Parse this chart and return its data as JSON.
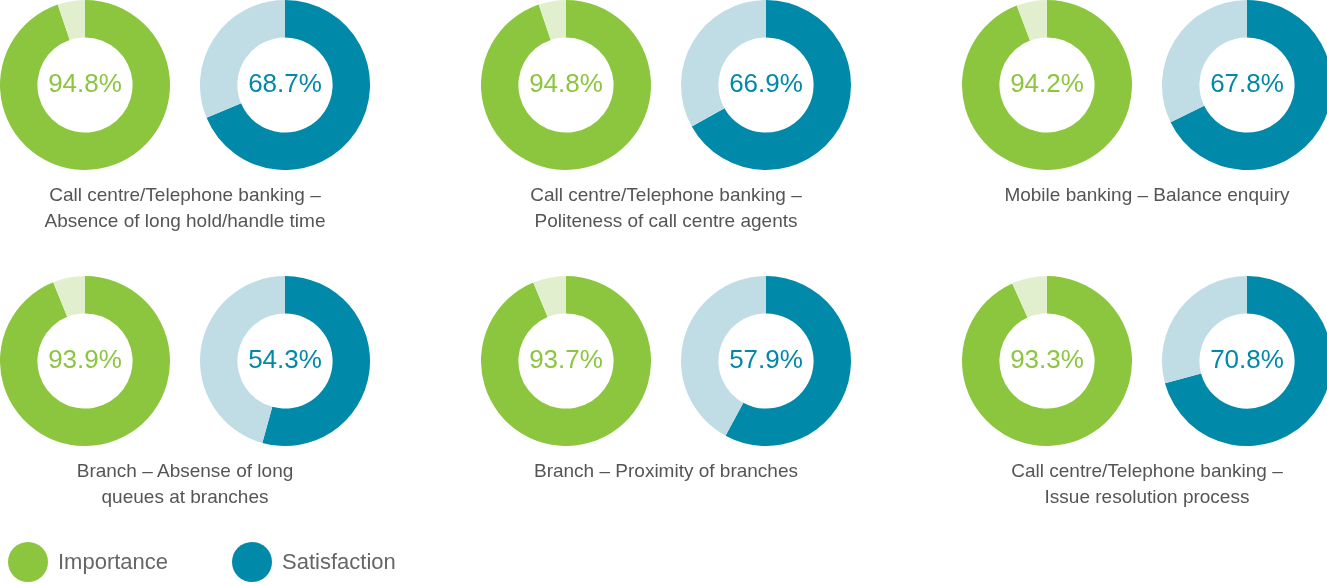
{
  "chart_data": [
    {
      "type": "donut",
      "title": "Call centre/Telephone banking –\nAbsence of long hold/handle time",
      "categories": [
        null,
        null
      ],
      "legend": "bottom",
      "series": [
        {
          "name": "Importance",
          "colors": [
            "#8cc63f",
            "#e2efcf"
          ],
          "values": [
            94.8,
            5.2
          ],
          "value_labels": [
            "94.8%",
            null
          ]
        },
        {
          "name": "Satisfaction",
          "colors": [
            "#0089a8",
            "#c0dde5"
          ],
          "values": [
            68.7,
            31.3
          ],
          "value_labels": [
            "68.7%",
            null
          ]
        }
      ]
    },
    {
      "type": "donut",
      "title": "Call centre/Telephone banking –\nPoliteness of call centre agents",
      "categories": [
        null,
        null
      ],
      "series": [
        {
          "colors": [
            "#8cc63f",
            "#e2efcf"
          ],
          "values": [
            94.8,
            5.2
          ],
          "value_labels": [
            "94.8%",
            null
          ]
        },
        {
          "colors": [
            "#0089a8",
            "#c0dde5"
          ],
          "values": [
            66.9,
            33.1
          ],
          "value_labels": [
            "66.9%",
            null
          ]
        }
      ]
    },
    {
      "type": "donut",
      "title": "Mobile banking – Balance enquiry",
      "categories": [
        null,
        null
      ],
      "series": [
        {
          "colors": [
            "#8cc63f",
            "#e2efcf"
          ],
          "values": [
            94.2,
            5.8
          ],
          "value_labels": [
            "94.2%",
            null
          ]
        },
        {
          "colors": [
            "#0089a8",
            "#c0dde5"
          ],
          "values": [
            67.8,
            32.2
          ],
          "value_labels": [
            "67.8%",
            null
          ]
        }
      ]
    },
    {
      "type": "donut",
      "title": "Branch – Absense of long\nqueues at branches",
      "categories": [
        null,
        null
      ],
      "series": [
        {
          "colors": [
            "#8cc63f",
            "#e2efcf"
          ],
          "values": [
            93.9,
            6.1
          ],
          "value_labels": [
            "93.9%",
            null
          ]
        },
        {
          "colors": [
            "#0089a8",
            "#c0dde5"
          ],
          "values": [
            54.3,
            45.7
          ],
          "value_labels": [
            "54.3%",
            null
          ]
        }
      ]
    },
    {
      "type": "donut",
      "title": "Branch – Proximity of branches",
      "categories": [
        null,
        null
      ],
      "series": [
        {
          "colors": [
            "#8cc63f",
            "#e2efcf"
          ],
          "values": [
            93.7,
            6.3
          ],
          "value_labels": [
            "93.7%",
            null
          ]
        },
        {
          "colors": [
            "#0089a8",
            "#c0dde5"
          ],
          "values": [
            57.9,
            42.1
          ],
          "value_labels": [
            "57.9%",
            null
          ]
        }
      ]
    },
    {
      "type": "donut",
      "title": "Call centre/Telephone banking –\nIssue resolution process",
      "categories": [
        null,
        null
      ],
      "series": [
        {
          "colors": [
            "#8cc63f",
            "#e2efcf"
          ],
          "values": [
            93.3,
            6.7
          ],
          "value_labels": [
            "93.3%",
            null
          ]
        },
        {
          "colors": [
            "#0089a8",
            "#c0dde5"
          ],
          "values": [
            70.8,
            29.2
          ],
          "value_labels": [
            "70.8%",
            null
          ]
        }
      ]
    }
  ]
}
